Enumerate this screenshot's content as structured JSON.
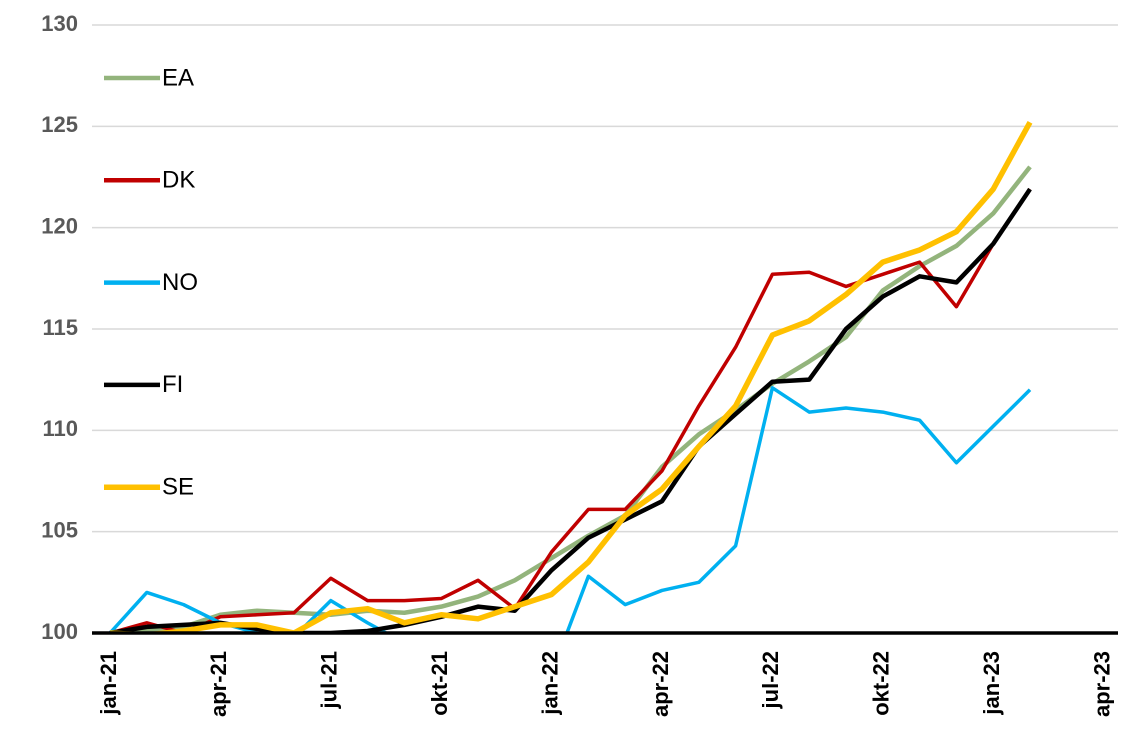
{
  "chart_data": {
    "type": "line",
    "categories": [
      "jan-21",
      null,
      null,
      "apr-21",
      null,
      null,
      "jul-21",
      null,
      null,
      "okt-21",
      null,
      null,
      "jan-22",
      null,
      null,
      "apr-22",
      null,
      null,
      "jul-22",
      null,
      null,
      "okt-22",
      null,
      null,
      "jan-23",
      null,
      null,
      "apr-23"
    ],
    "series": [
      {
        "name": "EA",
        "color": "#93b47c",
        "values": [
          100,
          100.1,
          100.3,
          100.9,
          101.1,
          101.0,
          100.9,
          101.1,
          101.0,
          101.3,
          101.8,
          102.6,
          103.7,
          104.8,
          105.8,
          108.2,
          109.8,
          111.0,
          112.3,
          113.4,
          114.6,
          116.9,
          118.1,
          119.1,
          120.7,
          123.0,
          null,
          null
        ]
      },
      {
        "name": "DK",
        "color": "#c00000",
        "values": [
          100,
          100.5,
          100.0,
          100.8,
          100.9,
          101.0,
          102.7,
          101.6,
          101.6,
          101.7,
          102.6,
          101.2,
          104.0,
          106.1,
          106.1,
          108.0,
          111.2,
          114.1,
          117.7,
          117.8,
          117.1,
          117.7,
          118.3,
          116.1,
          119.2,
          121.9,
          null,
          null
        ]
      },
      {
        "name": "NO",
        "color": "#00b0f0",
        "values": [
          100,
          102.0,
          101.4,
          100.5,
          100.0,
          99.8,
          101.6,
          100.5,
          99.5,
          98.8,
          98.5,
          98.5,
          98.0,
          102.8,
          101.4,
          102.1,
          102.5,
          104.3,
          112.1,
          110.9,
          111.1,
          110.9,
          110.5,
          108.4,
          110.2,
          112.0,
          null,
          null
        ]
      },
      {
        "name": "FI",
        "color": "#000000",
        "values": [
          100,
          100.3,
          100.4,
          100.5,
          100.2,
          100.0,
          100.0,
          100.1,
          100.4,
          100.8,
          101.3,
          101.1,
          103.1,
          104.7,
          105.6,
          106.5,
          109.2,
          110.8,
          112.4,
          112.5,
          115.0,
          116.6,
          117.6,
          117.3,
          119.2,
          121.9,
          null,
          null
        ]
      },
      {
        "name": "SE",
        "color": "#ffc000",
        "values": [
          100,
          99.9,
          100.1,
          100.4,
          100.4,
          100.0,
          101.0,
          101.2,
          100.5,
          100.9,
          100.7,
          101.3,
          101.9,
          103.5,
          105.8,
          107.1,
          109.2,
          111.2,
          114.7,
          115.4,
          116.7,
          118.3,
          118.9,
          119.8,
          121.9,
          125.2,
          null,
          null
        ]
      }
    ],
    "ylim": [
      100,
      130
    ],
    "yticks": [
      100,
      105,
      110,
      115,
      120,
      125,
      130
    ],
    "grid": true,
    "legend": "upper left"
  }
}
